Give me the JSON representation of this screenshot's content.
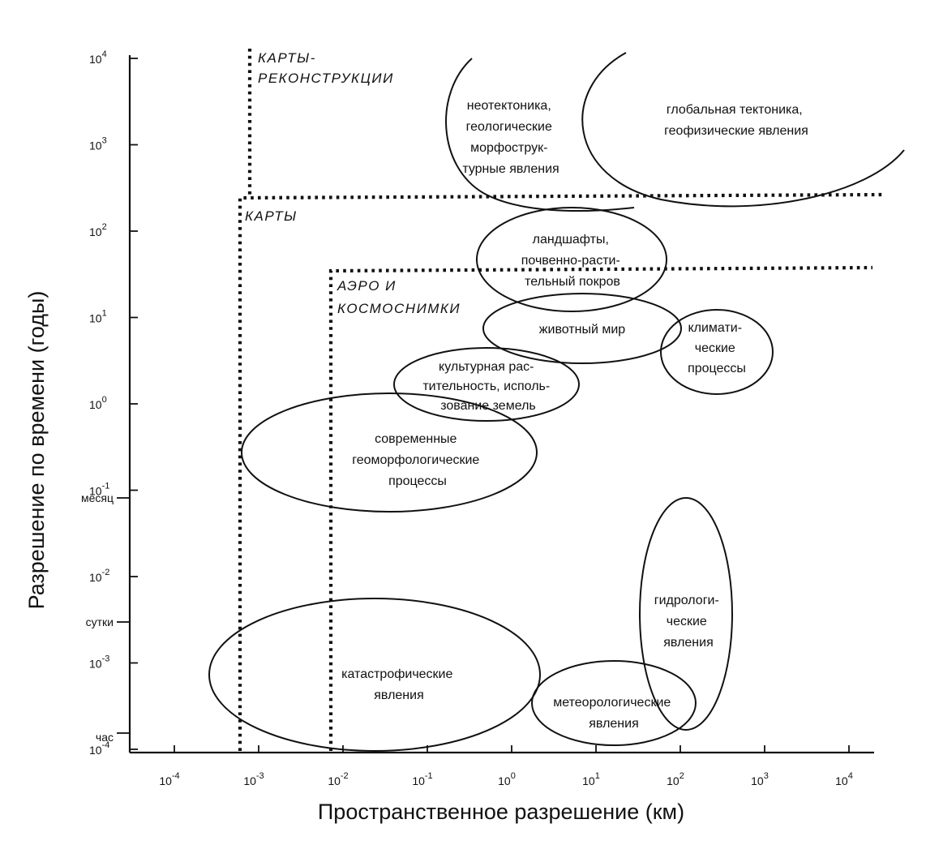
{
  "axes": {
    "x_title": "Пространственное разрешение (км)",
    "y_title": "Разрешение по времени (годы)",
    "x_ticks": [
      {
        "base": "10",
        "exp": "-4"
      },
      {
        "base": "10",
        "exp": "-3"
      },
      {
        "base": "10",
        "exp": "-2"
      },
      {
        "base": "10",
        "exp": "-1"
      },
      {
        "base": "10",
        "exp": "0"
      },
      {
        "base": "10",
        "exp": "1"
      },
      {
        "base": "10",
        "exp": "2"
      },
      {
        "base": "10",
        "exp": "3"
      },
      {
        "base": "10",
        "exp": "4"
      }
    ],
    "y_ticks": [
      {
        "base": "10",
        "exp": "4"
      },
      {
        "base": "10",
        "exp": "3"
      },
      {
        "base": "10",
        "exp": "2"
      },
      {
        "base": "10",
        "exp": "1"
      },
      {
        "base": "10",
        "exp": "0"
      },
      {
        "base": "10",
        "exp": "-1"
      },
      {
        "base": "10",
        "exp": "-2"
      },
      {
        "base": "10",
        "exp": "-3"
      },
      {
        "base": "10",
        "exp": "-4"
      }
    ],
    "named_ticks": {
      "month": "месяц",
      "day": "сутки",
      "hour": "час"
    }
  },
  "zones": {
    "reconstruction_maps": [
      "КАРТЫ-",
      "РЕКОНСТРУКЦИИ"
    ],
    "maps": [
      "КАРТЫ"
    ],
    "aerospace": [
      "АЭРО И",
      "КОСМОСНИМКИ"
    ]
  },
  "phenomena": {
    "neotectonics": [
      "неотектоника,",
      "геологические",
      "морфострук-",
      "турные явления"
    ],
    "global_tectonics": [
      "глобальная тектоника,",
      "геофизические явления"
    ],
    "landscapes": [
      "ландшафты,",
      "почвенно-расти-",
      "тельный покров"
    ],
    "fauna": [
      "животный мир"
    ],
    "climate": [
      "климати-",
      "ческие",
      "процессы"
    ],
    "agriculture": [
      "культурная рас-",
      "тительность, исполь-",
      "зование земель"
    ],
    "geomorphology": [
      "современные",
      "геоморфологические",
      "процессы"
    ],
    "hydrology": [
      "гидрологи-",
      "ческие",
      "явления"
    ],
    "catastrophic": [
      "катастрофические",
      "явления"
    ],
    "meteorology": [
      "метеорологические",
      "явления"
    ]
  }
}
